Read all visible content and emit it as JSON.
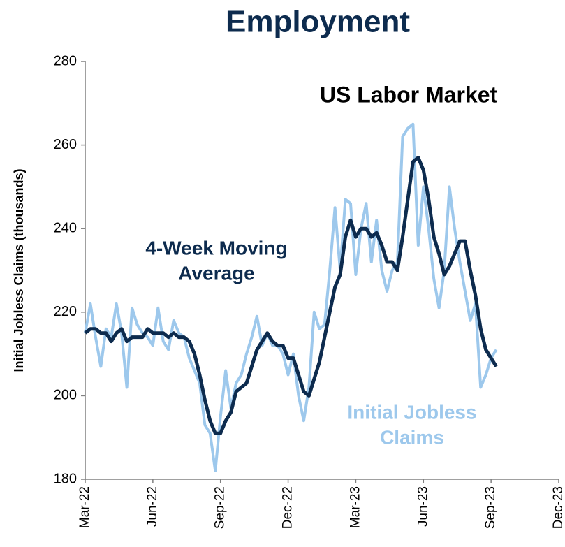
{
  "chart_data": {
    "type": "line",
    "title": "Employment",
    "subtitle": "US Labor Market",
    "y_label": "Initial Jobless Claims (thousands)",
    "x": [
      0,
      1,
      2,
      3,
      4,
      5,
      6,
      7,
      8,
      9,
      10,
      11,
      12,
      13,
      14,
      15,
      16,
      17,
      18,
      19,
      20,
      21,
      22,
      23,
      24,
      25,
      26,
      27,
      28,
      29,
      30,
      31,
      32,
      33,
      34,
      35,
      36,
      37,
      38,
      39,
      40,
      41,
      42,
      43,
      44,
      45,
      46,
      47,
      48,
      49,
      50,
      51,
      52,
      53,
      54,
      55,
      56,
      57,
      58,
      59,
      60,
      61,
      62,
      63,
      64,
      65,
      66,
      67,
      68,
      69,
      70,
      71,
      72,
      73,
      74,
      75,
      76,
      77,
      78,
      79
    ],
    "series": [
      {
        "name": "Initial Jobless Claims",
        "color": "#9dc8ec",
        "values": [
          215,
          222,
          214,
          207,
          216,
          214,
          222,
          215,
          202,
          221,
          217,
          215,
          214,
          212,
          221,
          213,
          211,
          218,
          215,
          214,
          209,
          206,
          203,
          193,
          191,
          182,
          195,
          206,
          197,
          203,
          205,
          210,
          214,
          219,
          212,
          215,
          212,
          212,
          210,
          205,
          210,
          200,
          194,
          202,
          220,
          216,
          217,
          230,
          245,
          230,
          247,
          246,
          229,
          240,
          246,
          232,
          242,
          230,
          225,
          230,
          232,
          262,
          264,
          265,
          236,
          250,
          240,
          228,
          221,
          230,
          250,
          240,
          232,
          225,
          218,
          222,
          202,
          205,
          209,
          211
        ]
      },
      {
        "name": "4-Week Moving Average",
        "color": "#0d2b4e",
        "values": [
          215,
          216,
          216,
          215,
          215,
          213,
          215,
          216,
          213,
          214,
          214,
          214,
          216,
          215,
          215,
          215,
          214,
          215,
          214,
          214,
          213,
          210,
          205,
          199,
          194,
          191,
          191,
          194,
          196,
          201,
          202,
          203,
          207,
          211,
          213,
          215,
          213,
          212,
          212,
          209,
          209,
          205,
          201,
          200,
          204,
          208,
          214,
          220,
          226,
          229,
          238,
          242,
          238,
          240,
          240,
          238,
          239,
          236,
          232,
          232,
          230,
          238,
          247,
          256,
          257,
          254,
          247,
          238,
          234,
          229,
          231,
          234,
          237,
          237,
          230,
          224,
          216,
          211,
          209,
          207
        ]
      }
    ],
    "annotations": [
      {
        "lines": [
          "4-Week Moving",
          "Average"
        ],
        "color": "#0d2b4e"
      },
      {
        "lines": [
          "Initial Jobless",
          "Claims"
        ],
        "color": "#9dc8ec"
      }
    ],
    "xlim": [
      0,
      91
    ],
    "xticks": [
      {
        "value": 0,
        "label": "Mar-22"
      },
      {
        "value": 13,
        "label": "Jun-22"
      },
      {
        "value": 26,
        "label": "Sep-22"
      },
      {
        "value": 39,
        "label": "Dec-22"
      },
      {
        "value": 52,
        "label": "Mar-23"
      },
      {
        "value": 65,
        "label": "Jun-23"
      },
      {
        "value": 78,
        "label": "Sep-23"
      },
      {
        "value": 91,
        "label": "Dec-23"
      }
    ],
    "ylim": [
      180,
      280
    ],
    "yticks": [
      180,
      200,
      220,
      240,
      260,
      280
    ],
    "grid": false
  }
}
